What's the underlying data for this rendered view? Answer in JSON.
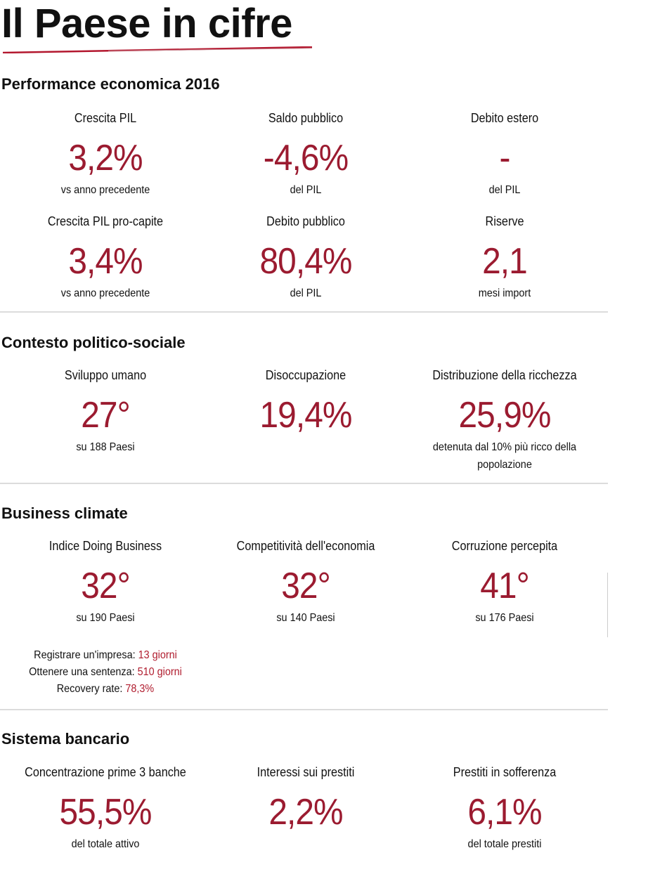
{
  "title": "Il Paese in cifre",
  "accent_color": "#9b1b30",
  "sections": [
    {
      "heading": "Performance economica 2016",
      "items": [
        {
          "label": "Crescita PIL",
          "value": "3,2%",
          "sub": "vs anno precedente"
        },
        {
          "label": "Saldo pubblico",
          "value": "-4,6%",
          "sub": "del PIL"
        },
        {
          "label": "Debito estero",
          "value": "-",
          "sub": "del PIL"
        },
        {
          "label": "Crescita PIL pro-capite",
          "value": "3,4%",
          "sub": "vs anno precedente"
        },
        {
          "label": "Debito pubblico",
          "value": "80,4%",
          "sub": "del PIL"
        },
        {
          "label": "Riserve",
          "value": "2,1",
          "sub": "mesi import"
        }
      ]
    },
    {
      "heading": "Contesto politico-sociale",
      "items": [
        {
          "label": "Sviluppo umano",
          "value": "27°",
          "sub": "su 188 Paesi"
        },
        {
          "label": "Disoccupazione",
          "value": "19,4%",
          "sub": ""
        },
        {
          "label": "Distribuzione della ricchezza",
          "value": "25,9%",
          "sub": "detenuta dal 10% più ricco della popolazione"
        }
      ]
    },
    {
      "heading": "Business climate",
      "items": [
        {
          "label": "Indice Doing Business",
          "value": "32°",
          "sub": "su 190 Paesi"
        },
        {
          "label": "Competitività dell'economia",
          "value": "32°",
          "sub": "su 140 Paesi"
        },
        {
          "label": "Corruzione percepita",
          "value": "41°",
          "sub": "su 176 Paesi"
        }
      ],
      "details": [
        {
          "label": "Registrare un'impresa:",
          "value": "13 giorni"
        },
        {
          "label": "Ottenere una sentenza:",
          "value": "510 giorni"
        },
        {
          "label": "Recovery rate:",
          "value": "78,3%"
        }
      ]
    },
    {
      "heading": "Sistema bancario",
      "items": [
        {
          "label": "Concentrazione prime 3 banche",
          "value": "55,5%",
          "sub": "del totale attivo"
        },
        {
          "label": "Interessi sui prestiti",
          "value": "2,2%",
          "sub": ""
        },
        {
          "label": "Prestiti in sofferenza",
          "value": "6,1%",
          "sub": "del totale prestiti"
        }
      ]
    }
  ]
}
